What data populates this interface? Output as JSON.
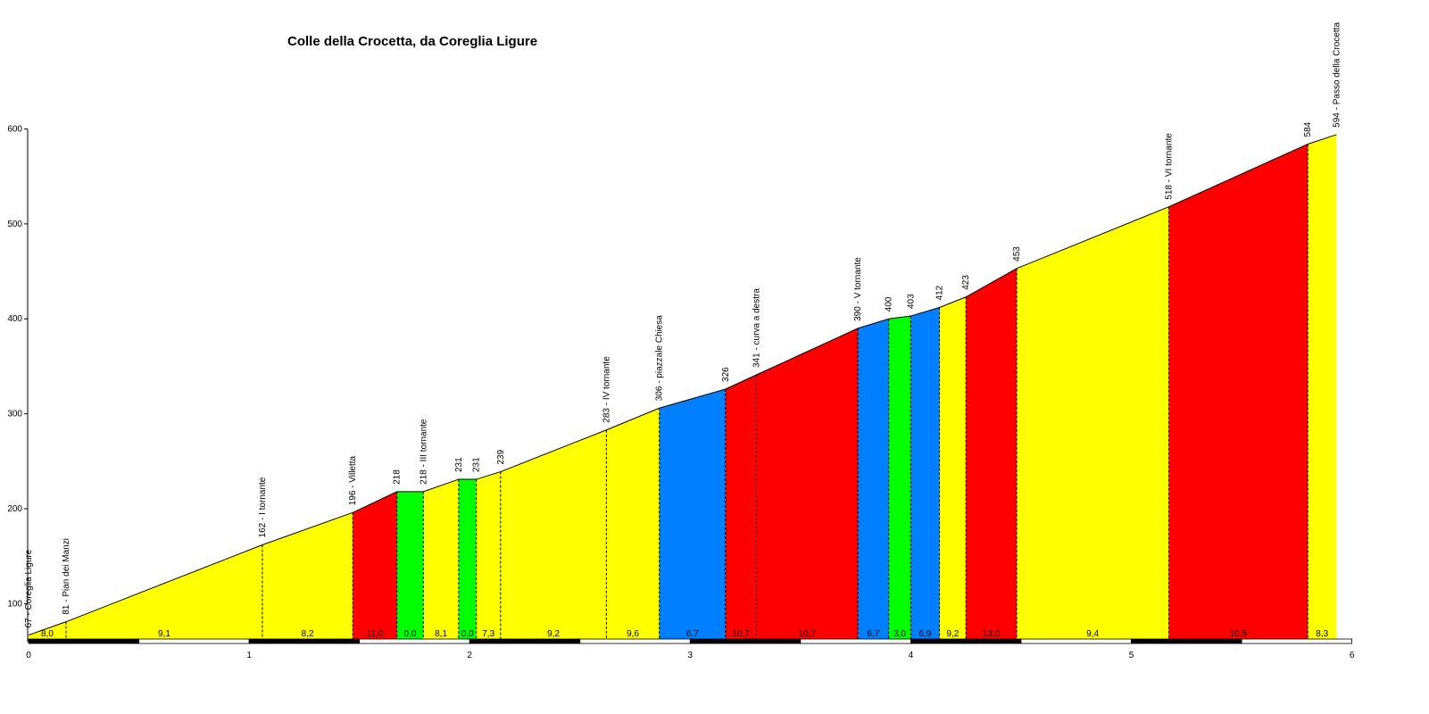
{
  "title": "Colle della Crocetta, da Coreglia Ligure",
  "chart_data": {
    "type": "area",
    "title": "Colle della Crocetta, da Coreglia Ligure",
    "xlabel": "",
    "ylabel": "",
    "xlim": [
      0,
      6
    ],
    "ylim": [
      60,
      600
    ],
    "x_ticks": [
      0,
      1,
      2,
      3,
      4,
      5,
      6
    ],
    "y_ticks": [
      100,
      200,
      300,
      400,
      500,
      600
    ],
    "grid": false,
    "legend": "none",
    "colors": {
      "yellow": "#ffff00",
      "red": "#ff0000",
      "green": "#00ff00",
      "blue": "#0080ff",
      "outline": "#000000"
    },
    "profile": [
      {
        "x": 0.0,
        "y": 67
      },
      {
        "x": 0.17,
        "y": 81
      },
      {
        "x": 1.06,
        "y": 162
      },
      {
        "x": 1.47,
        "y": 196
      },
      {
        "x": 1.67,
        "y": 218
      },
      {
        "x": 1.79,
        "y": 218
      },
      {
        "x": 1.95,
        "y": 231
      },
      {
        "x": 2.03,
        "y": 231
      },
      {
        "x": 2.14,
        "y": 239
      },
      {
        "x": 2.62,
        "y": 283
      },
      {
        "x": 2.86,
        "y": 306
      },
      {
        "x": 3.16,
        "y": 326
      },
      {
        "x": 3.3,
        "y": 341
      },
      {
        "x": 3.76,
        "y": 390
      },
      {
        "x": 3.9,
        "y": 400
      },
      {
        "x": 4.0,
        "y": 403
      },
      {
        "x": 4.13,
        "y": 412
      },
      {
        "x": 4.25,
        "y": 423
      },
      {
        "x": 4.48,
        "y": 453
      },
      {
        "x": 5.17,
        "y": 518
      },
      {
        "x": 5.8,
        "y": 584
      },
      {
        "x": 5.93,
        "y": 594
      }
    ],
    "segments": [
      {
        "grade": "8,0",
        "color": "yellow"
      },
      {
        "grade": "9,1",
        "color": "yellow"
      },
      {
        "grade": "8,2",
        "color": "yellow"
      },
      {
        "grade": "11,0",
        "color": "red"
      },
      {
        "grade": "0,0",
        "color": "green"
      },
      {
        "grade": "8,1",
        "color": "yellow"
      },
      {
        "grade": "0,0",
        "color": "green"
      },
      {
        "grade": "7,3",
        "color": "yellow"
      },
      {
        "grade": "9,2",
        "color": "yellow"
      },
      {
        "grade": "9,6",
        "color": "yellow"
      },
      {
        "grade": "6,7",
        "color": "blue"
      },
      {
        "grade": "10,7",
        "color": "red"
      },
      {
        "grade": "10,7",
        "color": "red"
      },
      {
        "grade": "6,7",
        "color": "blue"
      },
      {
        "grade": "3,0",
        "color": "green"
      },
      {
        "grade": "6,9",
        "color": "blue"
      },
      {
        "grade": "9,2",
        "color": "yellow"
      },
      {
        "grade": "13,0",
        "color": "red"
      },
      {
        "grade": "9,4",
        "color": "yellow"
      },
      {
        "grade": "10,5",
        "color": "red"
      },
      {
        "grade": "8,3",
        "color": "yellow"
      }
    ],
    "point_labels": [
      "67 - Coreglia Ligure",
      "81 - Pian dei Manzi",
      "162 - I tornante",
      "196 - Villetta",
      "218",
      "218 - III tornante",
      "231",
      "231",
      "239",
      "283 - IV tornante",
      "306 - piazzale Chiesa",
      "326",
      "341 - curva a destra",
      "390 - V tornante",
      "400",
      "403",
      "412",
      "423",
      "453",
      "518 - VI tornante",
      "584",
      "594 - Passo della Crocetta"
    ]
  }
}
